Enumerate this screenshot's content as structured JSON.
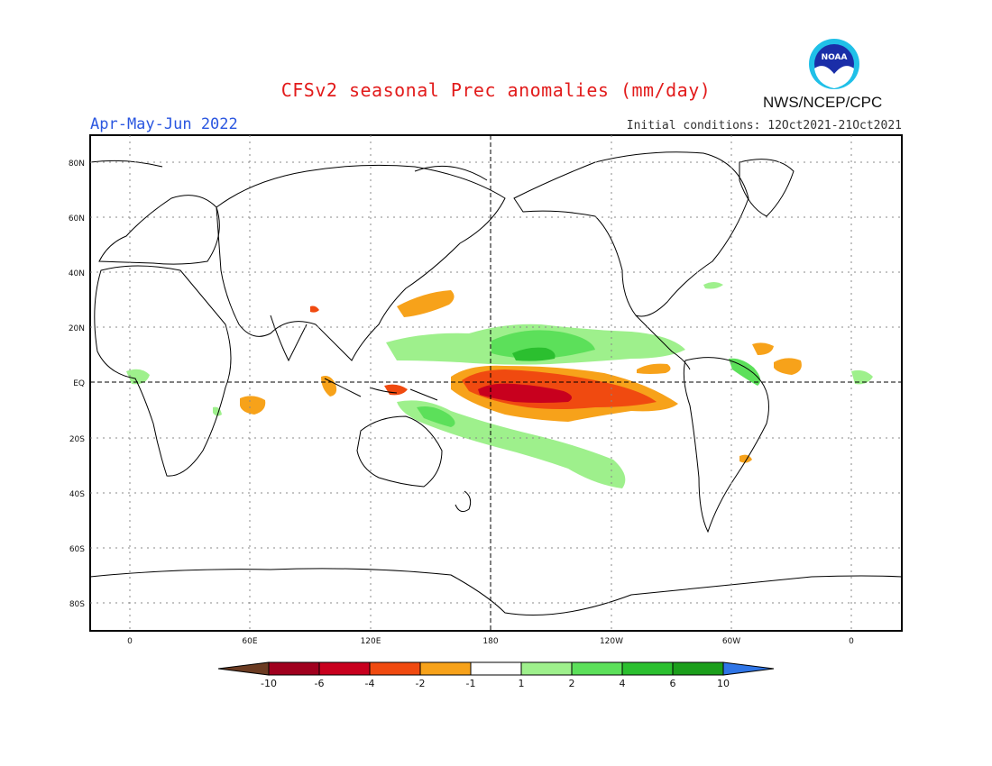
{
  "header": {
    "title": "CFSv2 seasonal Prec anomalies (mm/day)",
    "season": "Apr-May-Jun 2022",
    "initial_conditions": "Initial conditions: 12Oct2021-21Oct2021",
    "agency": "NWS/NCEP/CPC",
    "logo_text": "NOAA"
  },
  "axes": {
    "lat_labels": [
      "80N",
      "60N",
      "40N",
      "20N",
      "EQ",
      "20S",
      "40S",
      "60S",
      "80S"
    ],
    "lon_labels": [
      "0",
      "60E",
      "120E",
      "180",
      "120W",
      "60W",
      "0"
    ]
  },
  "colorbar": {
    "labels": [
      "-10",
      "-6",
      "-4",
      "-2",
      "-1",
      "1",
      "2",
      "4",
      "6",
      "10"
    ],
    "colors": [
      "#6b3b22",
      "#a0001e",
      "#c8001e",
      "#f04a10",
      "#f7a21a",
      "#ffffff",
      "#9ef08c",
      "#5ce05a",
      "#2bbf2f",
      "#1b9e1b",
      "#2f75e6"
    ]
  },
  "anomaly_colors": {
    "dry_light": "#f7a21a",
    "dry_medium": "#f04a10",
    "dry_strong": "#c8001e",
    "wet_light": "#9ef08c",
    "wet_medium": "#5ce05a",
    "wet_strong": "#2bbf2f"
  }
}
